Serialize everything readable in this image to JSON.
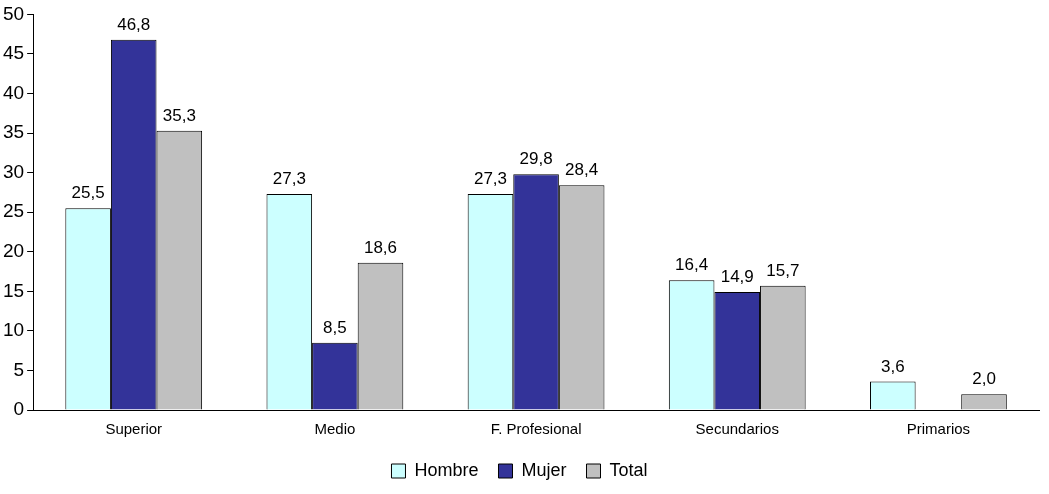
{
  "chart_data": {
    "type": "bar",
    "categories": [
      "Superior",
      "Medio",
      "F. Profesional",
      "Secundarios",
      "Primarios"
    ],
    "series": [
      {
        "name": "Hombre",
        "color": "#ccffff",
        "values": [
          25.5,
          27.3,
          27.3,
          16.4,
          3.6
        ],
        "value_labels": [
          "25,5",
          "27,3",
          "27,3",
          "16,4",
          "3,6"
        ]
      },
      {
        "name": "Mujer",
        "color": "#333399",
        "values": [
          46.8,
          8.5,
          29.8,
          14.9,
          0
        ],
        "value_labels": [
          "46,8",
          "8,5",
          "29,8",
          "14,9",
          null
        ]
      },
      {
        "name": "Total",
        "color": "#c0c0c0",
        "values": [
          35.3,
          18.6,
          28.4,
          15.7,
          2.0
        ],
        "value_labels": [
          "35,3",
          "18,6",
          "28,4",
          "15,7",
          "2,0"
        ]
      }
    ],
    "ylim": [
      0,
      50
    ],
    "yticks": [
      0,
      5,
      10,
      15,
      20,
      25,
      30,
      35,
      40,
      45,
      50
    ],
    "grid": false,
    "legend": "bottom"
  }
}
